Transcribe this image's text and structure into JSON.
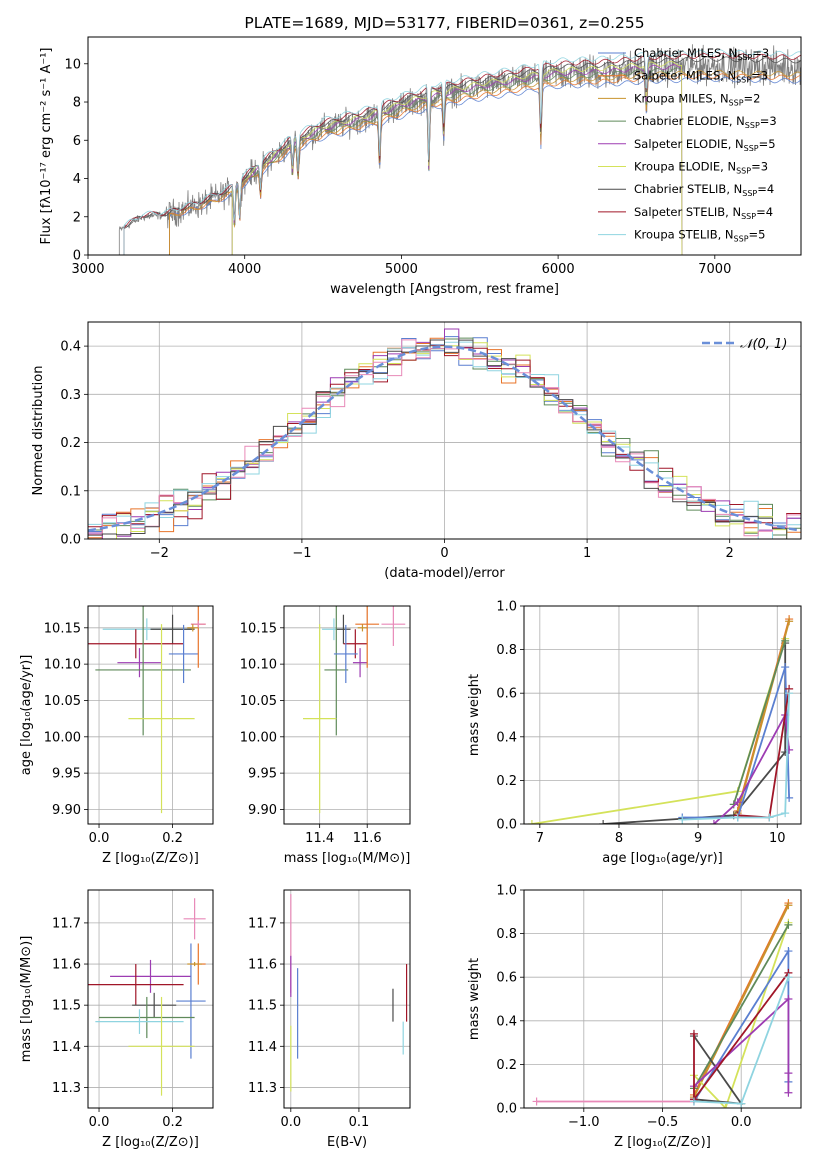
{
  "colors": {
    "chabrier_miles": "#5a7fd0",
    "salpeter_miles": "#e8742a",
    "kroupa_miles": "#c8932d",
    "chabrier_elodie": "#5f8a5a",
    "salpeter_elodie": "#9d3cb2",
    "kroupa_elodie": "#d4e25a",
    "chabrier_stelib": "#4a4a4a",
    "salpeter_stelib": "#a01628",
    "kroupa_stelib": "#8fd4e0",
    "pink": "#e889b8",
    "normal": "#6a8fd8",
    "data": "#808080"
  },
  "chart_data": [
    {
      "id": "spectrum",
      "type": "line",
      "title": "PLATE=1689, MJD=53177, FIBERID=0361, z=0.255",
      "xlabel": "wavelength [Angstrom, rest frame]",
      "ylabel": "Flux [fλ10⁻¹⁷ erg cm⁻² s⁻¹ A⁻¹]",
      "xlim": [
        3000,
        7550
      ],
      "ylim": [
        0,
        11.4
      ],
      "xticks": [
        3000,
        4000,
        5000,
        6000,
        7000
      ],
      "yticks": [
        0,
        2,
        4,
        6,
        8,
        10
      ],
      "legend_position": "upper right",
      "legend": [
        {
          "name": "Chabrier MILES, N_SSP=3",
          "base": "Chabrier MILES, N",
          "sub": "SSP",
          "tail": "=3",
          "color": "chabrier_miles"
        },
        {
          "name": "Salpeter MILES, N_SSP=3",
          "base": "Salpeter MILES, N",
          "sub": "SSP",
          "tail": "=3",
          "color": "salpeter_miles"
        },
        {
          "name": "Kroupa MILES, N_SSP=2",
          "base": "Kroupa MILES, N",
          "sub": "SSP",
          "tail": "=2",
          "color": "kroupa_miles"
        },
        {
          "name": "Chabrier ELODIE, N_SSP=3",
          "base": "Chabrier ELODIE, N",
          "sub": "SSP",
          "tail": "=3",
          "color": "chabrier_elodie"
        },
        {
          "name": "Salpeter ELODIE, N_SSP=5",
          "base": "Salpeter ELODIE, N",
          "sub": "SSP",
          "tail": "=5",
          "color": "salpeter_elodie"
        },
        {
          "name": "Kroupa ELODIE, N_SSP=3",
          "base": "Kroupa ELODIE, N",
          "sub": "SSP",
          "tail": "=3",
          "color": "kroupa_elodie"
        },
        {
          "name": "Chabrier STELIB, N_SSP=4",
          "base": "Chabrier STELIB, N",
          "sub": "SSP",
          "tail": "=4",
          "color": "chabrier_stelib"
        },
        {
          "name": "Salpeter STELIB, N_SSP=4",
          "base": "Salpeter STELIB, N",
          "sub": "SSP",
          "tail": "=4",
          "color": "salpeter_stelib"
        },
        {
          "name": "Kroupa STELIB, N_SSP=5",
          "base": "Kroupa STELIB, N",
          "sub": "SSP",
          "tail": "=5",
          "color": "kroupa_stelib"
        }
      ],
      "data_range": [
        3200,
        7550
      ],
      "model_shape": [
        [
          3200,
          1.3
        ],
        [
          3350,
          2.0
        ],
        [
          3500,
          2.1
        ],
        [
          3700,
          2.6
        ],
        [
          3900,
          3.3
        ],
        [
          4100,
          4.6
        ],
        [
          4300,
          5.8
        ],
        [
          4500,
          6.6
        ],
        [
          4800,
          7.2
        ],
        [
          5000,
          7.8
        ],
        [
          5200,
          8.3
        ],
        [
          5500,
          8.8
        ],
        [
          5800,
          9.2
        ],
        [
          6000,
          9.5
        ],
        [
          6300,
          9.6
        ],
        [
          6600,
          9.8
        ],
        [
          7000,
          9.9
        ],
        [
          7550,
          9.8
        ]
      ],
      "model_start": {
        "miles": 3520,
        "elodie": 3920,
        "stelib": 3230
      },
      "model_end": {
        "elodie": 6790
      }
    },
    {
      "id": "residuals",
      "type": "histogram",
      "xlabel": "(data-model)/error",
      "ylabel": "Normed distribution",
      "xlim": [
        -2.5,
        2.5
      ],
      "ylim": [
        0,
        0.45
      ],
      "xticks": [
        -2,
        -1,
        0,
        1,
        2
      ],
      "yticks": [
        0.0,
        0.1,
        0.2,
        0.3,
        0.4
      ],
      "bin_width": 0.1,
      "legend": [
        {
          "name": "N(0,1)",
          "label": "𝒩(0, 1)",
          "color": "normal",
          "dashed": true
        }
      ],
      "legend_position": "upper right"
    },
    {
      "id": "age-vs-z",
      "type": "errorbar",
      "xlabel": "Z [log₁₀(Z/Z⊙)]",
      "ylabel": "age  [log₁₀(age/yr)]",
      "xlim": [
        -0.03,
        0.31
      ],
      "ylim": [
        9.88,
        10.18
      ],
      "xticks": [
        0.0,
        0.2
      ],
      "yticks": [
        9.9,
        9.95,
        10.0,
        10.05,
        10.1,
        10.15
      ],
      "points": [
        {
          "color": "kroupa_stelib",
          "x": 0.13,
          "xerr": 0.12,
          "y": 10.148,
          "yerr": 0.015
        },
        {
          "color": "chabrier_stelib",
          "x": 0.2,
          "xerr": 0.06,
          "y": 10.148,
          "yerr": 0.02
        },
        {
          "color": "salpeter_stelib",
          "x": 0.1,
          "xerr": 0.13,
          "y": 10.128,
          "yerr": 0.02
        },
        {
          "color": "salpeter_elodie",
          "x": 0.11,
          "xerr": 0.06,
          "y": 10.102,
          "yerr": 0.02
        },
        {
          "color": "chabrier_elodie",
          "x": 0.12,
          "xerr": 0.13,
          "y": 10.092,
          "yerr": 0.09
        },
        {
          "color": "chabrier_miles",
          "x": 0.23,
          "xerr": 0.04,
          "y": 10.114,
          "yerr": 0.04
        },
        {
          "color": "salpeter_miles",
          "x": 0.27,
          "xerr": 0.02,
          "y": 10.155,
          "yerr": 0.06
        },
        {
          "color": "pink",
          "x": 0.27,
          "xerr": 0.02,
          "y": 10.155,
          "yerr": 0.005
        },
        {
          "color": "kroupa_elodie",
          "x": 0.17,
          "xerr": 0.09,
          "y": 10.025,
          "yerr": 0.13
        },
        {
          "color": "kroupa_miles",
          "x": 0.255,
          "xerr": 0.015,
          "y": 10.15,
          "yerr": 0.005
        }
      ]
    },
    {
      "id": "age-vs-mass",
      "type": "errorbar",
      "xlabel": "mass [log₁₀(M/M⊙)]",
      "ylabel": "",
      "xlim": [
        11.25,
        11.78
      ],
      "ylim": [
        9.88,
        10.18
      ],
      "xticks": [
        11.4,
        11.6
      ],
      "yticks": [
        9.9,
        9.95,
        10.0,
        10.05,
        10.1,
        10.15
      ],
      "points": [
        {
          "color": "kroupa_stelib",
          "x": 11.46,
          "xerr": 0.05,
          "y": 10.148,
          "yerr": 0.015
        },
        {
          "color": "chabrier_stelib",
          "x": 11.5,
          "xerr": 0.03,
          "y": 10.148,
          "yerr": 0.02
        },
        {
          "color": "salpeter_stelib",
          "x": 11.55,
          "xerr": 0.05,
          "y": 10.128,
          "yerr": 0.02
        },
        {
          "color": "salpeter_elodie",
          "x": 11.57,
          "xerr": 0.03,
          "y": 10.102,
          "yerr": 0.02
        },
        {
          "color": "chabrier_elodie",
          "x": 11.47,
          "xerr": 0.05,
          "y": 10.092,
          "yerr": 0.09
        },
        {
          "color": "chabrier_miles",
          "x": 11.51,
          "xerr": 0.05,
          "y": 10.114,
          "yerr": 0.04
        },
        {
          "color": "salpeter_miles",
          "x": 11.6,
          "xerr": 0.05,
          "y": 10.155,
          "yerr": 0.06
        },
        {
          "color": "pink",
          "x": 11.71,
          "xerr": 0.05,
          "y": 10.155,
          "yerr": 0.03
        },
        {
          "color": "kroupa_elodie",
          "x": 11.4,
          "xerr": 0.07,
          "y": 10.025,
          "yerr": 0.13
        },
        {
          "color": "kroupa_miles",
          "x": 11.58,
          "xerr": 0.02,
          "y": 10.15,
          "yerr": 0.005
        }
      ]
    },
    {
      "id": "weight-vs-age",
      "type": "line",
      "xlabel": "age  [log₁₀(age/yr)]",
      "ylabel": "mass weight",
      "xlim": [
        6.8,
        10.3
      ],
      "ylim": [
        0,
        1.0
      ],
      "xticks": [
        7,
        8,
        9,
        10
      ],
      "yticks": [
        0.0,
        0.2,
        0.4,
        0.6,
        0.8,
        1.0
      ],
      "series": [
        {
          "color": "kroupa_elodie",
          "points": [
            [
              6.9,
              0.0
            ],
            [
              9.5,
              0.15
            ],
            [
              10.1,
              0.85
            ]
          ]
        },
        {
          "color": "chabrier_stelib",
          "points": [
            [
              7.8,
              0.0
            ],
            [
              9.45,
              0.04
            ],
            [
              10.1,
              0.33
            ],
            [
              10.1,
              0.83
            ]
          ]
        },
        {
          "color": "salpeter_miles",
          "points": [
            [
              9.5,
              0.06
            ],
            [
              10.15,
              0.94
            ]
          ]
        },
        {
          "color": "kroupa_miles",
          "points": [
            [
              9.5,
              0.05
            ],
            [
              10.15,
              0.93
            ]
          ]
        },
        {
          "color": "chabrier_miles",
          "points": [
            [
              8.8,
              0.03
            ],
            [
              9.5,
              0.03
            ],
            [
              10.1,
              0.72
            ],
            [
              10.15,
              0.12
            ]
          ]
        },
        {
          "color": "chabrier_elodie",
          "points": [
            [
              9.45,
              0.09
            ],
            [
              10.1,
              0.84
            ]
          ]
        },
        {
          "color": "salpeter_elodie",
          "points": [
            [
              9.2,
              0.0
            ],
            [
              9.5,
              0.1
            ],
            [
              10.1,
              0.5
            ],
            [
              10.15,
              0.34
            ]
          ]
        },
        {
          "color": "salpeter_stelib",
          "points": [
            [
              9.5,
              0.04
            ],
            [
              9.9,
              0.03
            ],
            [
              10.15,
              0.62
            ]
          ]
        },
        {
          "color": "kroupa_stelib",
          "points": [
            [
              8.8,
              0.02
            ],
            [
              9.5,
              0.03
            ],
            [
              9.9,
              0.03
            ],
            [
              10.1,
              0.05
            ],
            [
              10.15,
              0.6
            ]
          ]
        }
      ]
    },
    {
      "id": "mass-vs-z",
      "type": "errorbar",
      "xlabel": "Z [log₁₀(Z/Z⊙)]",
      "ylabel": "mass [log₁₀(M/M⊙)]",
      "xlim": [
        -0.03,
        0.31
      ],
      "ylim": [
        11.25,
        11.78
      ],
      "xticks": [
        0.0,
        0.2
      ],
      "yticks": [
        11.3,
        11.4,
        11.5,
        11.6,
        11.7
      ],
      "points": [
        {
          "color": "pink",
          "x": 0.26,
          "xerr": 0.03,
          "y": 11.71,
          "yerr": 0.05
        },
        {
          "color": "salpeter_miles",
          "x": 0.27,
          "xerr": 0.02,
          "y": 11.6,
          "yerr": 0.05
        },
        {
          "color": "salpeter_elodie",
          "x": 0.14,
          "xerr": 0.11,
          "y": 11.57,
          "yerr": 0.04
        },
        {
          "color": "salpeter_stelib",
          "x": 0.1,
          "xerr": 0.13,
          "y": 11.55,
          "yerr": 0.05
        },
        {
          "color": "chabrier_miles",
          "x": 0.25,
          "xerr": 0.04,
          "y": 11.51,
          "yerr": 0.14
        },
        {
          "color": "chabrier_stelib",
          "x": 0.15,
          "xerr": 0.06,
          "y": 11.5,
          "yerr": 0.03
        },
        {
          "color": "chabrier_elodie",
          "x": 0.13,
          "xerr": 0.13,
          "y": 11.47,
          "yerr": 0.05
        },
        {
          "color": "kroupa_stelib",
          "x": 0.11,
          "xerr": 0.12,
          "y": 11.46,
          "yerr": 0.03
        },
        {
          "color": "kroupa_elodie",
          "x": 0.17,
          "xerr": 0.09,
          "y": 11.4,
          "yerr": 0.12
        },
        {
          "color": "kroupa_miles",
          "x": 0.26,
          "xerr": 0.02,
          "y": 11.6,
          "yerr": 0.005
        }
      ]
    },
    {
      "id": "mass-vs-ebv",
      "type": "errorbar",
      "xlabel": "E(B-V)",
      "ylabel": "",
      "xlim": [
        -0.01,
        0.175
      ],
      "ylim": [
        11.25,
        11.78
      ],
      "xticks": [
        0.0,
        0.1
      ],
      "yticks": [
        11.3,
        11.4,
        11.5,
        11.6,
        11.7
      ],
      "points": [
        {
          "color": "pink",
          "x": 0.0,
          "xerr": 0.0,
          "y": 11.65,
          "yerr": 0.12
        },
        {
          "color": "salpeter_elodie",
          "x": 0.0,
          "xerr": 0.0,
          "y": 11.57,
          "yerr": 0.05
        },
        {
          "color": "chabrier_miles",
          "x": 0.01,
          "xerr": 0.0,
          "y": 11.48,
          "yerr": 0.11
        },
        {
          "color": "kroupa_elodie",
          "x": 0.0,
          "xerr": 0.0,
          "y": 11.37,
          "yerr": 0.08
        },
        {
          "color": "chabrier_stelib",
          "x": 0.15,
          "xerr": 0.0,
          "y": 11.5,
          "yerr": 0.04
        },
        {
          "color": "salpeter_stelib",
          "x": 0.17,
          "xerr": 0.0,
          "y": 11.53,
          "yerr": 0.07
        },
        {
          "color": "kroupa_stelib",
          "x": 0.165,
          "xerr": 0.0,
          "y": 11.42,
          "yerr": 0.04
        }
      ]
    },
    {
      "id": "weight-vs-z",
      "type": "line",
      "xlabel": "Z [log₁₀(Z/Z⊙)]",
      "ylabel": "mass weight",
      "xlim": [
        -1.38,
        0.38
      ],
      "ylim": [
        0,
        1.0
      ],
      "xticks": [
        -1.0,
        -0.5,
        0.0
      ],
      "yticks": [
        0.0,
        0.2,
        0.4,
        0.6,
        0.8,
        1.0
      ],
      "series": [
        {
          "color": "pink",
          "points": [
            [
              -1.3,
              0.03
            ],
            [
              -0.3,
              0.03
            ]
          ]
        },
        {
          "color": "salpeter_miles",
          "points": [
            [
              -0.3,
              0.06
            ],
            [
              0.3,
              0.94
            ]
          ]
        },
        {
          "color": "kroupa_miles",
          "points": [
            [
              -0.3,
              0.05
            ],
            [
              0.3,
              0.93
            ]
          ]
        },
        {
          "color": "kroupa_elodie",
          "points": [
            [
              -0.3,
              0.15
            ],
            [
              -0.1,
              0.0
            ],
            [
              0.3,
              0.85
            ]
          ]
        },
        {
          "color": "chabrier_elodie",
          "points": [
            [
              -0.3,
              0.09
            ],
            [
              0.3,
              0.84
            ]
          ]
        },
        {
          "color": "chabrier_stelib",
          "points": [
            [
              -0.3,
              0.33
            ],
            [
              0.0,
              0.02
            ],
            [
              -0.3,
              0.04
            ]
          ]
        },
        {
          "color": "chabrier_miles",
          "points": [
            [
              -0.3,
              0.03
            ],
            [
              0.3,
              0.72
            ],
            [
              0.3,
              0.12
            ]
          ]
        },
        {
          "color": "salpeter_elodie",
          "points": [
            [
              -0.3,
              0.1
            ],
            [
              0.3,
              0.5
            ],
            [
              0.3,
              0.16
            ],
            [
              0.3,
              0.07
            ]
          ]
        },
        {
          "color": "salpeter_stelib",
          "points": [
            [
              -0.3,
              0.34
            ],
            [
              -0.3,
              0.04
            ],
            [
              0.3,
              0.62
            ]
          ]
        },
        {
          "color": "kroupa_stelib",
          "points": [
            [
              -0.3,
              0.03
            ],
            [
              0.0,
              0.02
            ],
            [
              0.3,
              0.6
            ]
          ]
        }
      ]
    }
  ]
}
